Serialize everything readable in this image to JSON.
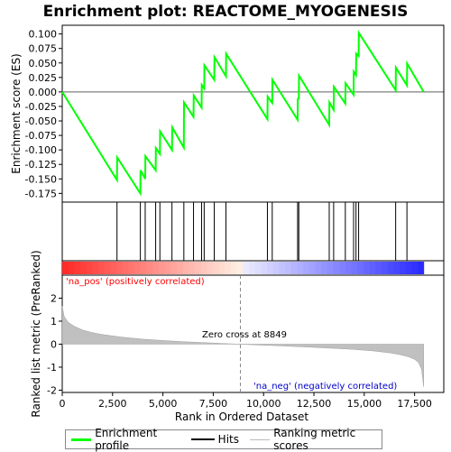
{
  "chart_data": {
    "type": "line",
    "title": "Enrichment plot: REACTOME_MYOGENESIS",
    "top_panel": {
      "ylabel": "Enrichment score (ES)",
      "ylim": [
        -0.19,
        0.115
      ],
      "yticks": [
        -0.175,
        -0.15,
        -0.125,
        -0.1,
        -0.075,
        -0.05,
        -0.025,
        0.0,
        0.025,
        0.05,
        0.075,
        0.1
      ],
      "ytick_labels": [
        "-0.175",
        "-0.150",
        "-0.125",
        "-0.100",
        "-0.075",
        "-0.050",
        "-0.025",
        "0.000",
        "0.025",
        "0.050",
        "0.075",
        "0.100"
      ],
      "series": [
        {
          "name": "Enrichment profile",
          "color": "#00ff00",
          "x": [
            0,
            2720,
            2730,
            3880,
            3890,
            4120,
            4130,
            4640,
            4650,
            4850,
            4860,
            5450,
            5460,
            6040,
            6050,
            6520,
            6530,
            6920,
            6930,
            7050,
            7060,
            7550,
            7560,
            8130,
            8140,
            10190,
            10200,
            10430,
            10440,
            11690,
            11700,
            11750,
            11760,
            13260,
            13270,
            13480,
            13490,
            14060,
            14070,
            14470,
            14480,
            14590,
            14600,
            14720,
            14730,
            16560,
            16570,
            17120,
            17130,
            17950
          ],
          "y": [
            0.0,
            -0.152,
            -0.113,
            -0.175,
            -0.135,
            -0.15,
            -0.111,
            -0.135,
            -0.097,
            -0.107,
            -0.068,
            -0.1,
            -0.061,
            -0.096,
            -0.018,
            -0.043,
            -0.006,
            -0.027,
            0.012,
            0.006,
            0.046,
            0.021,
            0.06,
            0.027,
            0.066,
            -0.047,
            -0.008,
            -0.019,
            0.021,
            -0.048,
            -0.012,
            -0.011,
            0.028,
            -0.057,
            -0.018,
            -0.031,
            0.009,
            -0.02,
            0.015,
            -0.005,
            0.035,
            0.029,
            0.066,
            0.062,
            0.102,
            0.003,
            0.042,
            0.011,
            0.049,
            0.0
          ]
        }
      ]
    },
    "hits_panel": {
      "hit_ranks": [
        2720,
        3880,
        4120,
        4640,
        4850,
        5450,
        6040,
        6520,
        6920,
        7050,
        7550,
        8130,
        10190,
        10430,
        11690,
        11750,
        13260,
        13480,
        14060,
        14470,
        14590,
        14720,
        16560,
        17120
      ]
    },
    "bottom_panel": {
      "ylabel": "Ranked list metric (PreRanked)",
      "xlabel": "Rank in Ordered Dataset",
      "ylim": [
        -2.1,
        3.0
      ],
      "yticks": [
        -2,
        -1,
        0,
        1,
        2
      ],
      "ytick_labels": [
        "-2",
        "-1",
        "0",
        "1",
        "2"
      ],
      "xlim": [
        0,
        18950
      ],
      "xticks": [
        0,
        2500,
        5000,
        7500,
        10000,
        12500,
        15000,
        17500
      ],
      "xtick_labels": [
        "0",
        "2,500",
        "5,000",
        "7,500",
        "10,000",
        "12,500",
        "15,000",
        "17,500"
      ],
      "metric": {
        "x": [
          0,
          100,
          300,
          600,
          1000,
          1500,
          2000,
          3000,
          4000,
          5000,
          6000,
          7000,
          8000,
          8849,
          9500,
          10500,
          11500,
          12500,
          13500,
          14500,
          15500,
          16300,
          16800,
          17200,
          17500,
          17700,
          17850,
          17950
        ],
        "y": [
          1.65,
          1.2,
          0.95,
          0.78,
          0.62,
          0.5,
          0.42,
          0.3,
          0.22,
          0.16,
          0.11,
          0.07,
          0.03,
          0.0,
          -0.03,
          -0.06,
          -0.1,
          -0.14,
          -0.18,
          -0.23,
          -0.3,
          -0.38,
          -0.46,
          -0.55,
          -0.66,
          -0.8,
          -1.1,
          -1.85
        ]
      },
      "zero_cross_rank": 8849,
      "zero_cross_label": "Zero cross at 8849",
      "pos_label": "'na_pos' (positively correlated)",
      "neg_label": "'na_neg' (negatively correlated)",
      "pos_color": "#ff0000",
      "neg_color": "#0000cc"
    },
    "legend": [
      {
        "name": "Enrichment profile",
        "color": "#00ff00"
      },
      {
        "name": "Hits",
        "color": "#000000"
      },
      {
        "name": "Ranking metric scores",
        "color": "#bbbbbb"
      }
    ]
  }
}
